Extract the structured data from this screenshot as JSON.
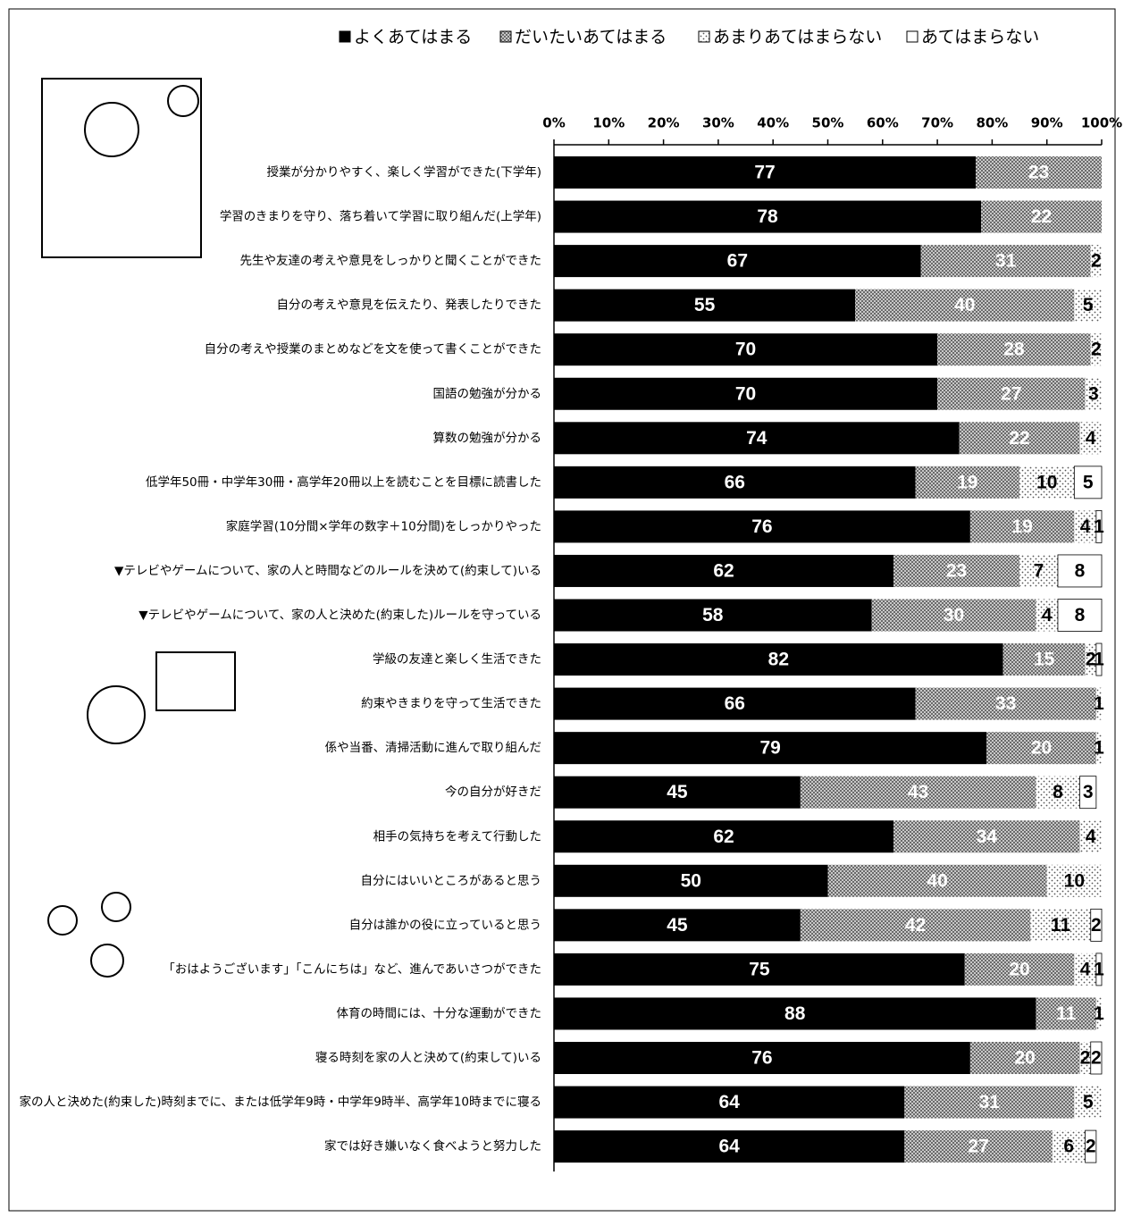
{
  "chart_data": {
    "type": "stacked-bar-horizontal",
    "categories": [
      "授業が分かりやすく、楽しく学習ができた(下学年)",
      "学習のきまりを守り、落ち着いて学習に取り組んだ(上学年)",
      "先生や友達の考えや意見をしっかりと聞くことができた",
      "自分の考えや意見を伝えたり、発表したりできた",
      "自分の考えや授業のまとめなどを文を使って書くことができた",
      "国語の勉強が分かる",
      "算数の勉強が分かる",
      "低学年50冊・中学年30冊・高学年20冊以上を読むことを目標に読書した",
      "家庭学習(10分間×学年の数字＋10分間)をしっかりやった",
      "▼テレビやゲームについて、家の人と時間などのルールを決めて(約束して)いる",
      "▼テレビやゲームについて、家の人と決めた(約束した)ルールを守っている",
      "学級の友達と楽しく生活できた",
      "約束やきまりを守って生活できた",
      "係や当番、清掃活動に進んで取り組んだ",
      "今の自分が好きだ",
      "相手の気持ちを考えて行動した",
      "自分にはいいところがあると思う",
      "自分は誰かの役に立っていると思う",
      "「おはようございます」「こんにちは」など、進んであいさつができた",
      "体育の時間には、十分な運動ができた",
      "寝る時刻を家の人と決めて(約束して)いる",
      "家の人と決めた(約束した)時刻までに、または低学年9時・中学年9時半、高学年10時までに寝る",
      "家では好き嫌いなく食べようと努力した"
    ],
    "series": [
      {
        "name": "よくあてはまる",
        "color": "#000000",
        "values": [
          77,
          78,
          67,
          55,
          70,
          70,
          74,
          66,
          76,
          62,
          58,
          82,
          66,
          79,
          45,
          62,
          50,
          45,
          75,
          88,
          76,
          64,
          64
        ]
      },
      {
        "name": "だいたいあてはまる",
        "color": "#9a9a9a",
        "values": [
          23,
          22,
          31,
          40,
          28,
          27,
          22,
          19,
          19,
          23,
          30,
          15,
          33,
          20,
          43,
          34,
          40,
          42,
          20,
          11,
          20,
          31,
          27
        ]
      },
      {
        "name": "あまりあてはまらない",
        "color": "#e6e6e6",
        "values": [
          null,
          null,
          2,
          5,
          2,
          3,
          4,
          10,
          4,
          7,
          4,
          2,
          1,
          1,
          8,
          4,
          10,
          11,
          4,
          1,
          2,
          5,
          6
        ]
      },
      {
        "name": "あてはまらない",
        "color": "#ffffff",
        "values": [
          null,
          null,
          null,
          null,
          null,
          null,
          null,
          5,
          1,
          8,
          8,
          1,
          null,
          null,
          3,
          null,
          null,
          2,
          1,
          null,
          2,
          null,
          2
        ]
      }
    ],
    "xlim": [
      0,
      100
    ],
    "xticks": [
      {
        "value": 0,
        "label": "0%"
      },
      {
        "value": 10,
        "label": "10%"
      },
      {
        "value": 20,
        "label": "20%"
      },
      {
        "value": 30,
        "label": "30%"
      },
      {
        "value": 40,
        "label": "40%"
      },
      {
        "value": 50,
        "label": "50%"
      },
      {
        "value": 60,
        "label": "60%"
      },
      {
        "value": 70,
        "label": "70%"
      },
      {
        "value": 80,
        "label": "80%"
      },
      {
        "value": 90,
        "label": "90%"
      },
      {
        "value": 100,
        "label": "100%"
      }
    ],
    "legend": "top"
  }
}
